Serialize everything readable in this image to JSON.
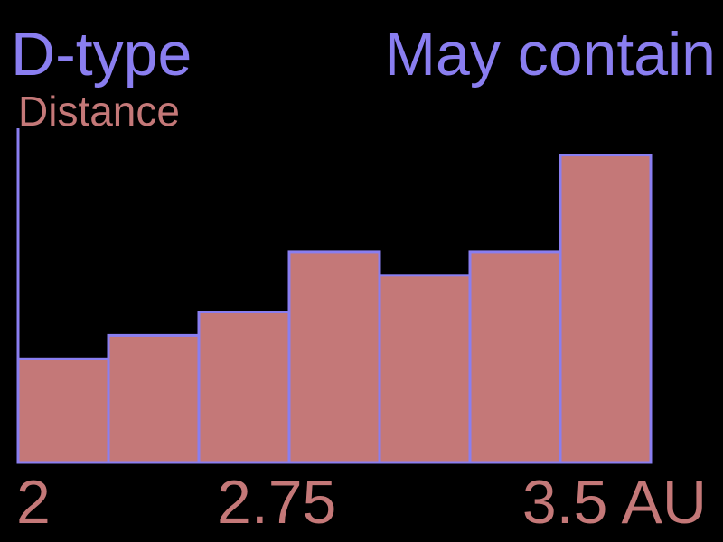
{
  "header": {
    "title_left": "D-type",
    "title_right": "May contain"
  },
  "colors": {
    "background": "#000000",
    "accent": "#8a7ef0",
    "bar_fill": "#c47878",
    "text_secondary": "#c47878"
  },
  "chart_data": {
    "type": "bar",
    "title": "",
    "ylabel": "Distance",
    "xlabel": "",
    "x_tick_labels": [
      "2",
      "2.75",
      "3.5 AU"
    ],
    "bin_edges": [
      2.0,
      2.25,
      2.5,
      2.75,
      3.0,
      3.25,
      3.5
    ],
    "values": [
      31,
      38,
      45,
      63,
      56,
      63,
      92
    ],
    "ylim": [
      0,
      100
    ],
    "grid": false,
    "legend": "none"
  }
}
